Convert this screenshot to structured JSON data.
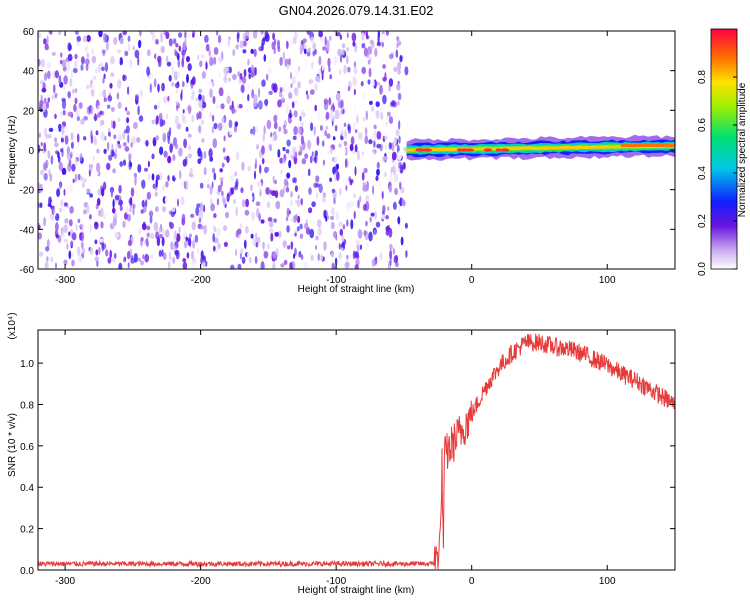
{
  "title": "GN04.2026.079.14.31.E02",
  "colors": {
    "line": "#e63b3b",
    "axis": "#000000"
  },
  "chart_data": [
    {
      "type": "heatmap",
      "name": "spectrogram",
      "xlabel": "Height of straight line (km)",
      "ylabel": "Frequency (Hz)",
      "xlim": [
        -320,
        150
      ],
      "ylim": [
        -60,
        60
      ],
      "xticks": [
        -300,
        -200,
        -100,
        0,
        100
      ],
      "yticks": [
        -60,
        -40,
        -20,
        0,
        20,
        40,
        60
      ],
      "noise_region": [
        -320,
        -48
      ],
      "noise_amplitude_range": [
        0.0,
        0.25
      ],
      "signal_band": {
        "x_start": -48,
        "x_end": 150,
        "center_hz": 0,
        "center_end_hz": 2,
        "width_hz": 5,
        "peak_amplitude": 0.95
      },
      "colorbar": {
        "label": "Normalized spectral amplitude",
        "ticks": [
          0.0,
          0.2,
          0.4,
          0.6,
          0.8
        ],
        "tick_labels": [
          "0.0",
          "0.2",
          "0.4",
          "0.6",
          "0.8"
        ],
        "range": [
          0,
          1
        ]
      }
    },
    {
      "type": "line",
      "name": "snr",
      "xlabel": "Height of straight line (km)",
      "ylabel": "SNR (10 * v/v)",
      "scale_note": "(x10⁴)",
      "xlim": [
        -320,
        150
      ],
      "ylim": [
        0,
        1.16
      ],
      "xticks": [
        -300,
        -200,
        -100,
        0,
        100
      ],
      "yticks": [
        0.0,
        0.2,
        0.4,
        0.6,
        0.8,
        1.0
      ],
      "ytick_labels": [
        "0.0",
        "0.2",
        "0.4",
        "0.6",
        "0.8",
        "1.0"
      ],
      "series": [
        {
          "name": "SNR",
          "x": [
            -320,
            -250,
            -150,
            -60,
            -30,
            -26,
            -23,
            -22,
            -21,
            -20,
            -10,
            0,
            10,
            20,
            30,
            40,
            50,
            60,
            70,
            80,
            90,
            100,
            110,
            120,
            130,
            140,
            150
          ],
          "y": [
            0.03,
            0.03,
            0.03,
            0.03,
            0.03,
            0.05,
            0.15,
            0.55,
            0.1,
            0.55,
            0.65,
            0.75,
            0.88,
            0.98,
            1.05,
            1.1,
            1.1,
            1.08,
            1.07,
            1.05,
            1.02,
            0.99,
            0.95,
            0.92,
            0.88,
            0.84,
            0.8
          ]
        }
      ]
    }
  ]
}
